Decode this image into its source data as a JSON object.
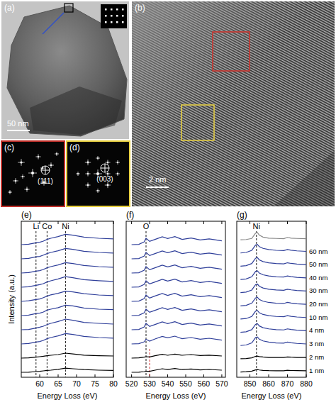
{
  "panels": [
    {
      "label": "(a)",
      "scale_bar": "50 nm"
    },
    {
      "label": "(b)",
      "scale_bar": "2 nm"
    },
    {
      "label": "(c)",
      "annotation": "(111)"
    },
    {
      "label": "(d)",
      "annotation": "(003)"
    }
  ],
  "chart_data": [
    {
      "type": "line",
      "title": "(e)",
      "x_label": "Energy Loss (eV)",
      "y_label": "Intensity (a.u.)",
      "tick_labels": "x",
      "x": [
        55,
        57,
        59,
        60,
        61,
        62,
        63,
        65,
        67,
        69,
        72,
        76,
        80
      ],
      "xlim": [
        55,
        80
      ],
      "xticks": [
        60,
        65,
        70,
        75,
        80
      ],
      "ylim": [
        0,
        11
      ],
      "annotations": [
        {
          "x": 59,
          "text": "Li"
        },
        {
          "x": 62,
          "text": "Co"
        },
        {
          "x": 67,
          "text": "Ni"
        }
      ],
      "series": [
        {
          "color": "#000000",
          "values": [
            0.35,
            0.36,
            0.4,
            0.42,
            0.45,
            0.48,
            0.5,
            0.56,
            0.64,
            0.6,
            0.54,
            0.5,
            0.48
          ]
        },
        {
          "color": "#000000",
          "values": [
            1.35,
            1.37,
            1.42,
            1.45,
            1.48,
            1.52,
            1.55,
            1.6,
            1.7,
            1.64,
            1.56,
            1.52,
            1.5
          ]
        },
        {
          "color": "#2f3f9a",
          "values": [
            2.35,
            2.38,
            2.48,
            2.52,
            2.6,
            2.72,
            2.8,
            2.92,
            3.08,
            3.02,
            2.88,
            2.8,
            2.76
          ]
        },
        {
          "color": "#2f3f9a",
          "values": [
            3.35,
            3.37,
            3.47,
            3.53,
            3.6,
            3.71,
            3.8,
            3.93,
            4.1,
            4.02,
            3.87,
            3.8,
            3.75
          ]
        },
        {
          "color": "#2f3f9a",
          "values": [
            4.35,
            4.38,
            4.49,
            4.52,
            4.6,
            4.73,
            4.8,
            4.91,
            5.08,
            5.03,
            4.88,
            4.8,
            4.77
          ]
        },
        {
          "color": "#2f3f9a",
          "values": [
            5.35,
            5.39,
            5.48,
            5.52,
            5.61,
            5.72,
            5.81,
            5.92,
            6.07,
            6.02,
            5.89,
            5.8,
            5.76
          ]
        },
        {
          "color": "#2f3f9a",
          "values": [
            6.35,
            6.38,
            6.48,
            6.53,
            6.6,
            6.72,
            6.8,
            6.93,
            7.09,
            7.02,
            6.88,
            6.81,
            6.76
          ]
        },
        {
          "color": "#2f3f9a",
          "values": [
            7.35,
            7.38,
            7.48,
            7.52,
            7.6,
            7.72,
            7.8,
            7.92,
            8.08,
            8.02,
            7.88,
            7.8,
            7.76
          ]
        },
        {
          "color": "#2f3f9a",
          "values": [
            8.35,
            8.38,
            8.49,
            8.52,
            8.61,
            8.72,
            8.8,
            8.92,
            9.08,
            9.02,
            8.88,
            8.8,
            8.76
          ]
        },
        {
          "color": "#2f3f9a",
          "values": [
            9.35,
            9.38,
            9.48,
            9.52,
            9.6,
            9.72,
            9.8,
            9.92,
            10.08,
            10.02,
            9.88,
            9.8,
            9.76
          ]
        }
      ]
    },
    {
      "type": "line",
      "title": "(f)",
      "x_label": "Energy Loss (eV)",
      "tick_labels": "x",
      "x": [
        520,
        524,
        527,
        528,
        530,
        533,
        537,
        540,
        544,
        548,
        553,
        558,
        563,
        570
      ],
      "xlim": [
        517,
        572
      ],
      "xticks": [
        520,
        530,
        540,
        550,
        560,
        570
      ],
      "ylim": [
        0,
        11
      ],
      "annotations": [
        {
          "x": 528,
          "text": "O"
        },
        {
          "x": 530,
          "color": "#d02020"
        }
      ],
      "series": [
        {
          "color": "#000000",
          "values": [
            0.35,
            0.36,
            0.4,
            0.42,
            0.42,
            0.5,
            0.6,
            0.54,
            0.62,
            0.54,
            0.58,
            0.52,
            0.55,
            0.5
          ]
        },
        {
          "color": "#000000",
          "values": [
            1.35,
            1.37,
            1.42,
            1.45,
            1.43,
            1.52,
            1.62,
            1.55,
            1.63,
            1.55,
            1.6,
            1.53,
            1.56,
            1.5
          ]
        },
        {
          "color": "#2f3f9a",
          "values": [
            2.35,
            2.37,
            2.5,
            2.68,
            2.55,
            2.7,
            2.88,
            2.78,
            2.9,
            2.72,
            2.8,
            2.68,
            2.75,
            2.62
          ]
        },
        {
          "color": "#2f3f9a",
          "values": [
            3.35,
            3.37,
            3.55,
            3.8,
            3.58,
            3.72,
            3.9,
            3.78,
            3.92,
            3.72,
            3.82,
            3.68,
            3.76,
            3.62
          ]
        },
        {
          "color": "#2f3f9a",
          "values": [
            4.35,
            4.37,
            4.55,
            4.8,
            4.58,
            4.72,
            4.9,
            4.78,
            4.92,
            4.72,
            4.82,
            4.68,
            4.76,
            4.62
          ]
        },
        {
          "color": "#2f3f9a",
          "values": [
            5.35,
            5.37,
            5.55,
            5.8,
            5.58,
            5.73,
            5.9,
            5.77,
            5.92,
            5.72,
            5.82,
            5.68,
            5.76,
            5.62
          ]
        },
        {
          "color": "#2f3f9a",
          "values": [
            6.35,
            6.37,
            6.55,
            6.8,
            6.58,
            6.72,
            6.9,
            6.78,
            6.92,
            6.72,
            6.82,
            6.68,
            6.76,
            6.62
          ]
        },
        {
          "color": "#2f3f9a",
          "values": [
            7.35,
            7.37,
            7.55,
            7.8,
            7.58,
            7.72,
            7.9,
            7.78,
            7.92,
            7.72,
            7.82,
            7.68,
            7.76,
            7.62
          ]
        },
        {
          "color": "#2f3f9a",
          "values": [
            8.35,
            8.37,
            8.55,
            8.8,
            8.58,
            8.72,
            8.9,
            8.78,
            8.92,
            8.72,
            8.82,
            8.68,
            8.76,
            8.62
          ]
        },
        {
          "color": "#2f3f9a",
          "values": [
            9.35,
            9.37,
            9.55,
            9.8,
            9.58,
            9.72,
            9.9,
            9.78,
            9.92,
            9.72,
            9.82,
            9.68,
            9.76,
            9.62
          ]
        }
      ]
    },
    {
      "type": "line",
      "title": "(g)",
      "x_label": "Energy Loss (eV)",
      "tick_labels": "x",
      "x": [
        845,
        848,
        851,
        853,
        854,
        855,
        857,
        860,
        864,
        868,
        870,
        872,
        875,
        880
      ],
      "xlim": [
        843,
        880
      ],
      "xticks": [
        850,
        860,
        870,
        880
      ],
      "ylim": [
        0,
        11.8
      ],
      "annotations": [
        {
          "x": 853.5,
          "text": "Ni"
        }
      ],
      "series": [
        {
          "name": "1 nm",
          "color": "#000000",
          "values": [
            0.4,
            0.42,
            0.46,
            0.56,
            0.58,
            0.55,
            0.52,
            0.5,
            0.49,
            0.49,
            0.53,
            0.51,
            0.5,
            0.49
          ]
        },
        {
          "name": "2 nm",
          "color": "#000000",
          "values": [
            1.4,
            1.42,
            1.47,
            1.58,
            1.6,
            1.56,
            1.53,
            1.5,
            1.49,
            1.5,
            1.54,
            1.52,
            1.5,
            1.49
          ]
        },
        {
          "name": "3 nm",
          "color": "#2f3f9a",
          "values": [
            2.4,
            2.44,
            2.6,
            3.0,
            3.05,
            2.88,
            2.75,
            2.66,
            2.6,
            2.58,
            2.66,
            2.61,
            2.56,
            2.52
          ]
        },
        {
          "name": "4 nm",
          "color": "#2f3f9a",
          "values": [
            3.4,
            3.44,
            3.6,
            4.0,
            4.05,
            3.88,
            3.75,
            3.66,
            3.6,
            3.58,
            3.66,
            3.61,
            3.56,
            3.52
          ]
        },
        {
          "name": "10 nm",
          "color": "#2f3f9a",
          "values": [
            4.4,
            4.44,
            4.6,
            5.0,
            5.05,
            4.88,
            4.75,
            4.66,
            4.6,
            4.58,
            4.66,
            4.61,
            4.56,
            4.52
          ]
        },
        {
          "name": "20 nm",
          "color": "#2f3f9a",
          "values": [
            5.4,
            5.44,
            5.6,
            6.0,
            6.05,
            5.88,
            5.75,
            5.66,
            5.6,
            5.58,
            5.66,
            5.61,
            5.56,
            5.52
          ]
        },
        {
          "name": "30 nm",
          "color": "#2f3f9a",
          "values": [
            6.4,
            6.44,
            6.6,
            7.0,
            7.05,
            6.88,
            6.75,
            6.66,
            6.6,
            6.58,
            6.66,
            6.61,
            6.56,
            6.52
          ]
        },
        {
          "name": "40 nm",
          "color": "#2f3f9a",
          "values": [
            7.4,
            7.44,
            7.6,
            8.0,
            8.05,
            7.88,
            7.75,
            7.66,
            7.6,
            7.58,
            7.66,
            7.61,
            7.56,
            7.52
          ]
        },
        {
          "name": "50 nm",
          "color": "#2f3f9a",
          "values": [
            8.4,
            8.44,
            8.6,
            9.0,
            9.05,
            8.88,
            8.75,
            8.66,
            8.6,
            8.58,
            8.66,
            8.61,
            8.56,
            8.52
          ]
        },
        {
          "name": "60 nm",
          "color": "#2f3f9a",
          "values": [
            9.4,
            9.44,
            9.6,
            10.0,
            10.05,
            9.88,
            9.75,
            9.66,
            9.6,
            9.58,
            9.66,
            9.61,
            9.56,
            9.52
          ]
        },
        {
          "color": "#888888",
          "values": [
            10.4,
            10.42,
            10.5,
            10.9,
            10.95,
            10.75,
            10.6,
            10.52,
            10.5,
            10.48,
            10.58,
            10.52,
            10.5,
            10.48
          ]
        }
      ]
    }
  ]
}
